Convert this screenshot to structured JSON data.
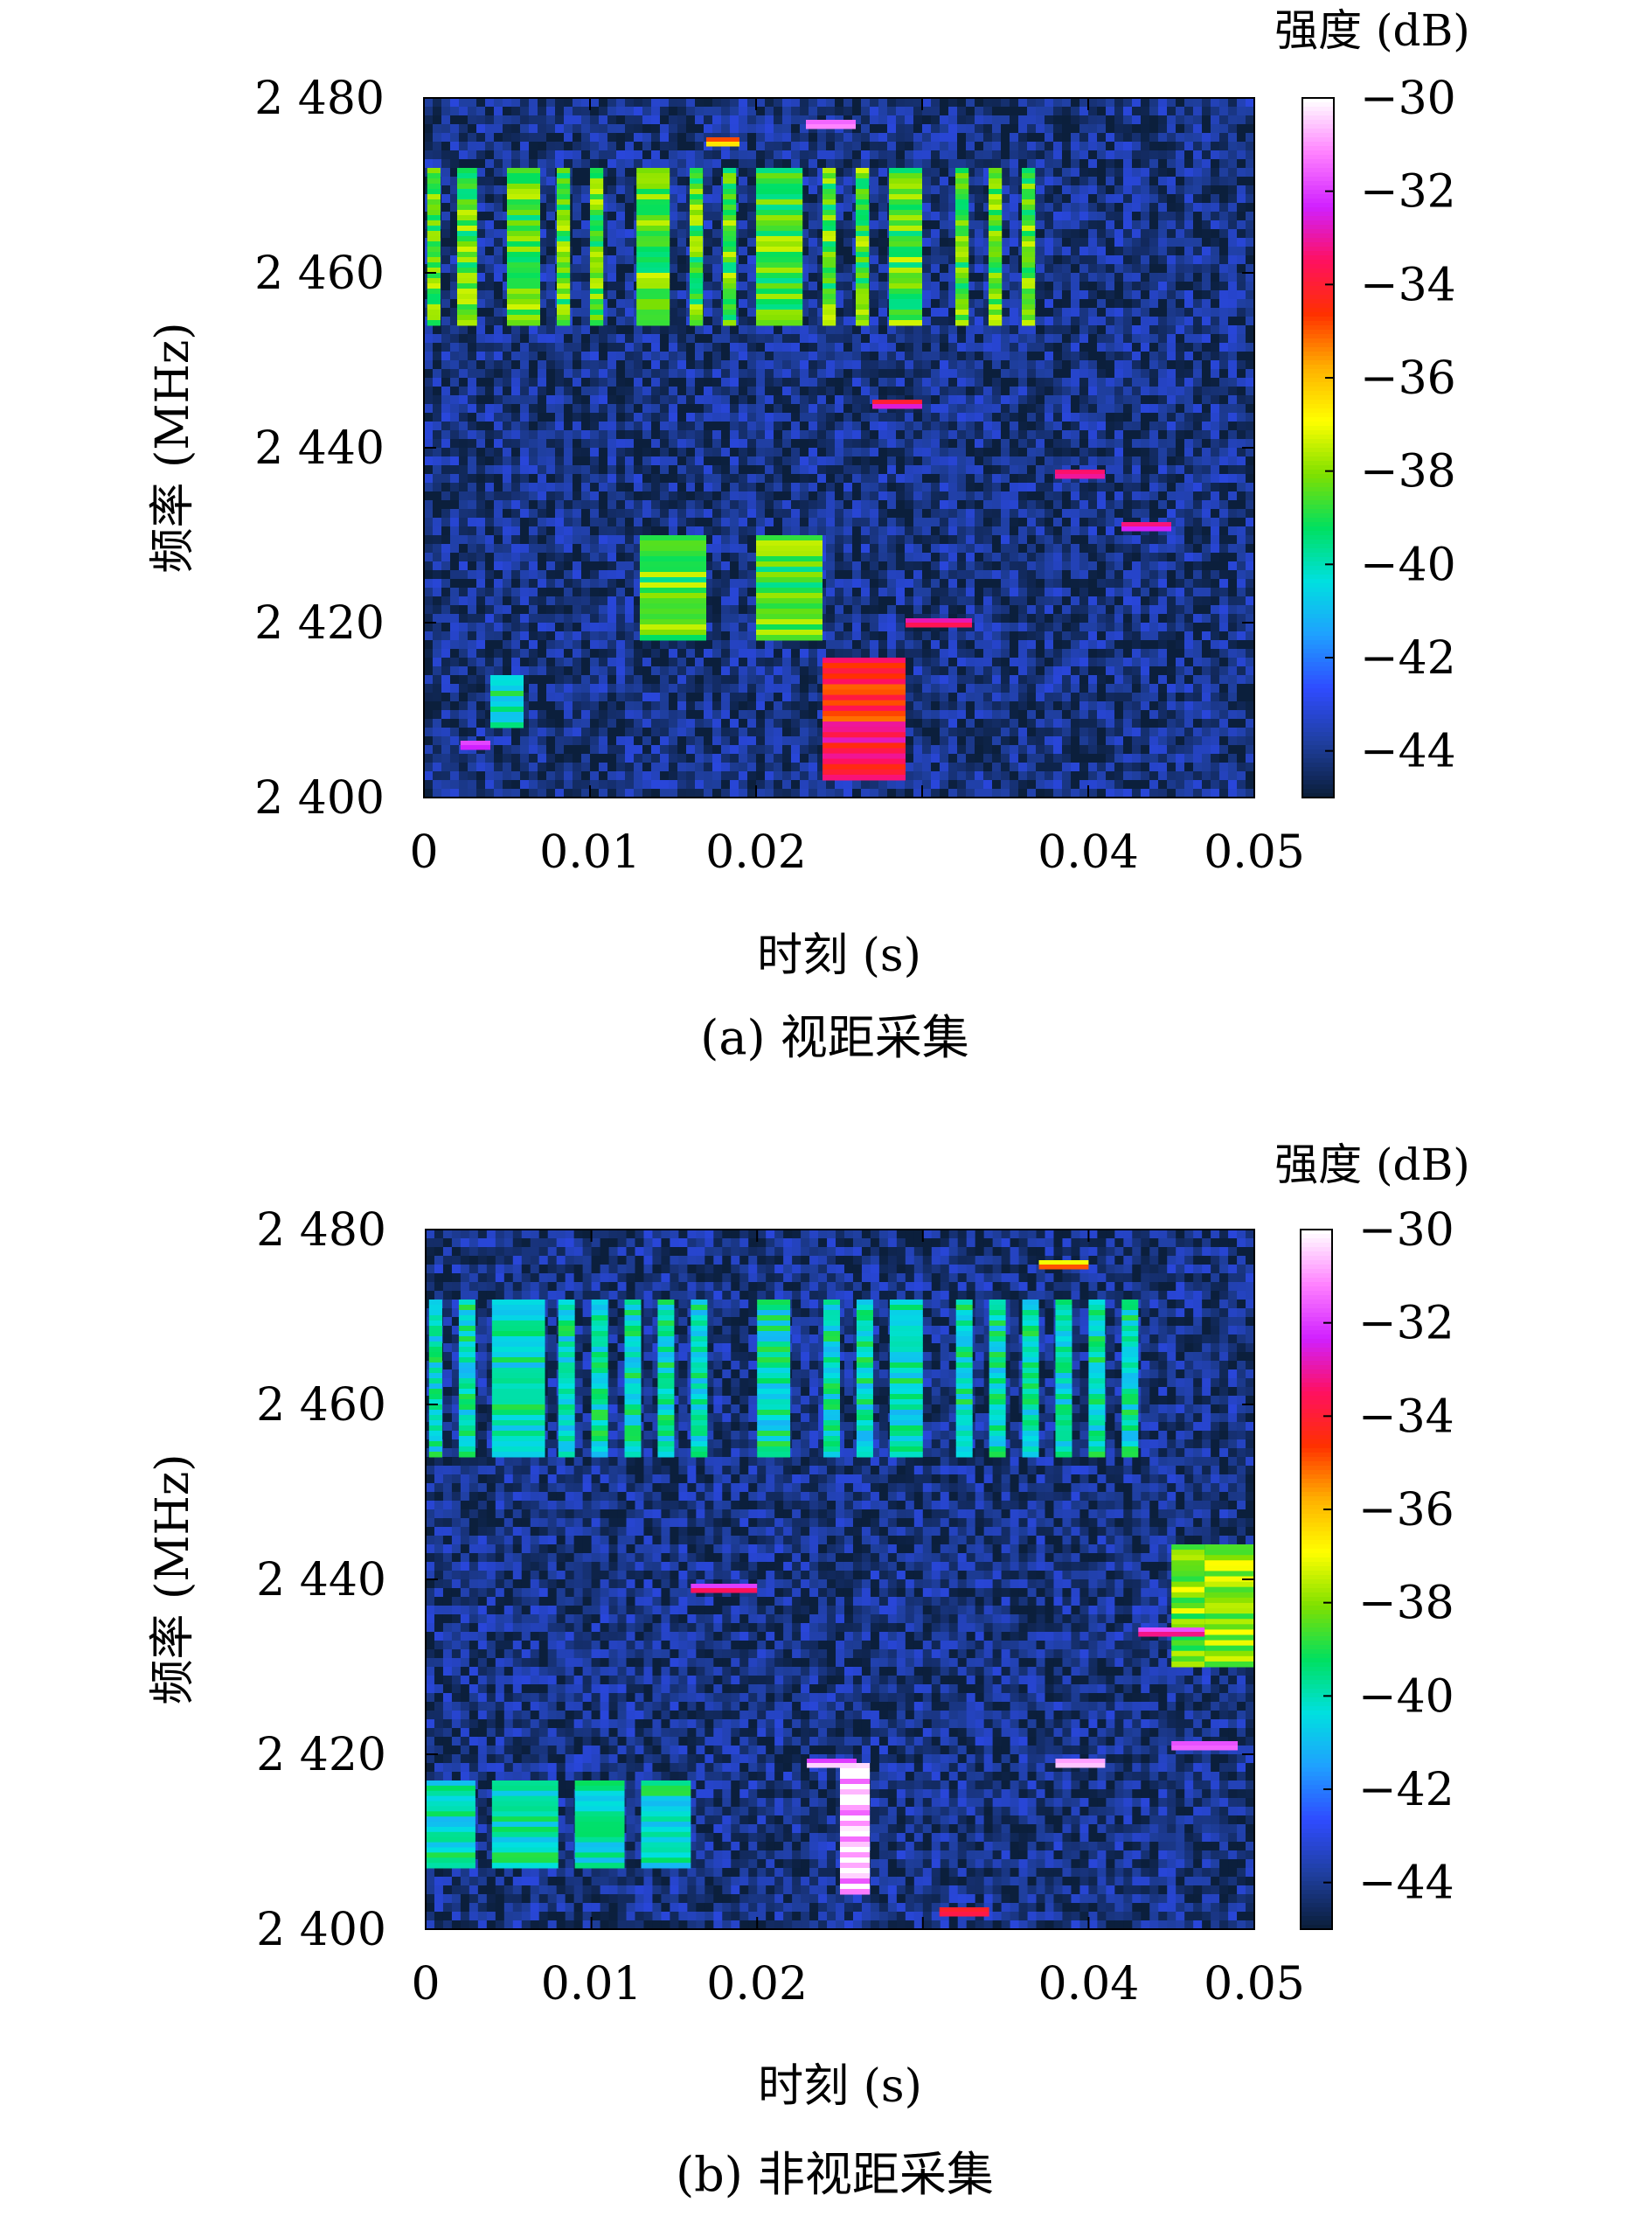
{
  "chart_data": [
    {
      "type": "heatmap",
      "caption": "(a) 视距采集",
      "xlabel": "时刻 (s)",
      "ylabel": "频率 (MHz)",
      "colorbar_label": "强度 (dB)",
      "xlim": [
        0,
        0.05
      ],
      "ylim": [
        2400,
        2480
      ],
      "x_ticks": [
        0,
        0.01,
        0.02,
        0.03,
        0.04,
        0.05
      ],
      "x_tick_labels": [
        "0",
        "0.01",
        "0.02",
        "",
        "0.04",
        "0.05"
      ],
      "y_ticks": [
        2400,
        2420,
        2440,
        2460,
        2480
      ],
      "y_tick_labels": [
        "2 400",
        "2 420",
        "2 440",
        "2 460",
        "2 480"
      ],
      "colorbar_range": [
        -45,
        -30
      ],
      "colorbar_ticks": [
        -30,
        -32,
        -34,
        -36,
        -38,
        -40,
        -42,
        -44
      ],
      "colorbar_tick_labels": [
        "−30",
        "−32",
        "−34",
        "−36",
        "−38",
        "−40",
        "−42",
        "−44"
      ],
      "colormap": [
        "#0b1f3c",
        "#1f3fa0",
        "#2f4bff",
        "#1fa0ff",
        "#00e0e0",
        "#00e060",
        "#7fe000",
        "#ffff00",
        "#ffb000",
        "#ff3000",
        "#ff1060",
        "#d020ff",
        "#ff80ff",
        "#ffffff"
      ],
      "background_db": -44,
      "regions": [
        {
          "x": [
            0.0002,
            0.001
          ],
          "y": [
            2454,
            2472
          ],
          "db": -38.5
        },
        {
          "x": [
            0.002,
            0.0032
          ],
          "y": [
            2454,
            2472
          ],
          "db": -38.5
        },
        {
          "x": [
            0.005,
            0.007
          ],
          "y": [
            2454,
            2472
          ],
          "db": -38.5
        },
        {
          "x": [
            0.008,
            0.0088
          ],
          "y": [
            2454,
            2472
          ],
          "db": -38.5
        },
        {
          "x": [
            0.01,
            0.0108
          ],
          "y": [
            2454,
            2472
          ],
          "db": -38.5
        },
        {
          "x": [
            0.0128,
            0.0148
          ],
          "y": [
            2454,
            2472
          ],
          "db": -38.5
        },
        {
          "x": [
            0.016,
            0.0168
          ],
          "y": [
            2454,
            2472
          ],
          "db": -38.5
        },
        {
          "x": [
            0.018,
            0.0188
          ],
          "y": [
            2454,
            2472
          ],
          "db": -38.5
        },
        {
          "x": [
            0.02,
            0.0228
          ],
          "y": [
            2454,
            2472
          ],
          "db": -38.5
        },
        {
          "x": [
            0.024,
            0.0248
          ],
          "y": [
            2454,
            2472
          ],
          "db": -38.5
        },
        {
          "x": [
            0.026,
            0.0268
          ],
          "y": [
            2454,
            2472
          ],
          "db": -38.5
        },
        {
          "x": [
            0.028,
            0.03
          ],
          "y": [
            2454,
            2472
          ],
          "db": -38.5
        },
        {
          "x": [
            0.032,
            0.0328
          ],
          "y": [
            2454,
            2472
          ],
          "db": -38.5
        },
        {
          "x": [
            0.034,
            0.0348
          ],
          "y": [
            2454,
            2472
          ],
          "db": -38.5
        },
        {
          "x": [
            0.036,
            0.0368
          ],
          "y": [
            2454,
            2472
          ],
          "db": -38.5
        },
        {
          "x": [
            0.013,
            0.017
          ],
          "y": [
            2418,
            2430
          ],
          "db": -38.5
        },
        {
          "x": [
            0.02,
            0.024
          ],
          "y": [
            2418,
            2430
          ],
          "db": -38.5
        },
        {
          "x": [
            0.024,
            0.029
          ],
          "y": [
            2402,
            2416
          ],
          "db": -34.0
        },
        {
          "x": [
            0.004,
            0.006
          ],
          "y": [
            2408,
            2414
          ],
          "db": -40.0
        },
        {
          "x": [
            0.023,
            0.026
          ],
          "y": [
            2476.5,
            2477.5
          ],
          "db": -31.0
        },
        {
          "x": [
            0.017,
            0.019
          ],
          "y": [
            2474.5,
            2475.5
          ],
          "db": -36.0
        },
        {
          "x": [
            0.0022,
            0.004
          ],
          "y": [
            2405.5,
            2406.5
          ],
          "db": -32.0
        },
        {
          "x": [
            0.038,
            0.041
          ],
          "y": [
            2436.5,
            2437.5
          ],
          "db": -33.0
        },
        {
          "x": [
            0.027,
            0.03
          ],
          "y": [
            2444.5,
            2445.5
          ],
          "db": -33.0
        },
        {
          "x": [
            0.029,
            0.033
          ],
          "y": [
            2419.5,
            2420.5
          ],
          "db": -34.0
        },
        {
          "x": [
            0.042,
            0.045
          ],
          "y": [
            2430.5,
            2431.5
          ],
          "db": -32.5
        }
      ]
    },
    {
      "type": "heatmap",
      "caption": "(b) 非视距采集",
      "xlabel": "时刻 (s)",
      "ylabel": "频率 (MHz)",
      "colorbar_label": "强度 (dB)",
      "xlim": [
        0,
        0.05
      ],
      "ylim": [
        2400,
        2480
      ],
      "x_ticks": [
        0,
        0.01,
        0.02,
        0.03,
        0.04,
        0.05
      ],
      "x_tick_labels": [
        "0",
        "0.01",
        "0.02",
        "",
        "0.04",
        "0.05"
      ],
      "y_ticks": [
        2400,
        2420,
        2440,
        2460,
        2480
      ],
      "y_tick_labels": [
        "2 400",
        "2 420",
        "2 440",
        "2 460",
        "2 480"
      ],
      "colorbar_range": [
        -45,
        -30
      ],
      "colorbar_ticks": [
        -30,
        -32,
        -34,
        -36,
        -38,
        -40,
        -42,
        -44
      ],
      "colorbar_tick_labels": [
        "−30",
        "−32",
        "−34",
        "−36",
        "−38",
        "−40",
        "−42",
        "−44"
      ],
      "colormap": [
        "#0b1f3c",
        "#1f3fa0",
        "#2f4bff",
        "#1fa0ff",
        "#00e0e0",
        "#00e060",
        "#7fe000",
        "#ffff00",
        "#ffb000",
        "#ff3000",
        "#ff1060",
        "#d020ff",
        "#ff80ff",
        "#ffffff"
      ],
      "background_db": -44,
      "regions": [
        {
          "x": [
            0.0002,
            0.001
          ],
          "y": [
            2454,
            2472
          ],
          "db": -40.0
        },
        {
          "x": [
            0.002,
            0.003
          ],
          "y": [
            2454,
            2472
          ],
          "db": -40.0
        },
        {
          "x": [
            0.004,
            0.0072
          ],
          "y": [
            2454,
            2472
          ],
          "db": -40.0
        },
        {
          "x": [
            0.008,
            0.009
          ],
          "y": [
            2454,
            2472
          ],
          "db": -40.0
        },
        {
          "x": [
            0.01,
            0.011
          ],
          "y": [
            2454,
            2472
          ],
          "db": -40.0
        },
        {
          "x": [
            0.012,
            0.013
          ],
          "y": [
            2454,
            2472
          ],
          "db": -40.0
        },
        {
          "x": [
            0.014,
            0.015
          ],
          "y": [
            2454,
            2472
          ],
          "db": -40.0
        },
        {
          "x": [
            0.016,
            0.017
          ],
          "y": [
            2454,
            2472
          ],
          "db": -40.0
        },
        {
          "x": [
            0.02,
            0.022
          ],
          "y": [
            2454,
            2472
          ],
          "db": -40.0
        },
        {
          "x": [
            0.024,
            0.025
          ],
          "y": [
            2454,
            2472
          ],
          "db": -40.0
        },
        {
          "x": [
            0.026,
            0.027
          ],
          "y": [
            2454,
            2472
          ],
          "db": -40.0
        },
        {
          "x": [
            0.028,
            0.03
          ],
          "y": [
            2454,
            2472
          ],
          "db": -40.0
        },
        {
          "x": [
            0.032,
            0.033
          ],
          "y": [
            2454,
            2472
          ],
          "db": -40.0
        },
        {
          "x": [
            0.034,
            0.035
          ],
          "y": [
            2454,
            2472
          ],
          "db": -40.0
        },
        {
          "x": [
            0.036,
            0.037
          ],
          "y": [
            2454,
            2472
          ],
          "db": -40.0
        },
        {
          "x": [
            0.038,
            0.039
          ],
          "y": [
            2454,
            2472
          ],
          "db": -40.0
        },
        {
          "x": [
            0.04,
            0.041
          ],
          "y": [
            2454,
            2472
          ],
          "db": -40.0
        },
        {
          "x": [
            0.042,
            0.043
          ],
          "y": [
            2454,
            2472
          ],
          "db": -40.0
        },
        {
          "x": [
            0.045,
            0.047
          ],
          "y": [
            2430,
            2444
          ],
          "db": -38.0
        },
        {
          "x": [
            0.047,
            0.05
          ],
          "y": [
            2430,
            2444
          ],
          "db": -38.0
        },
        {
          "x": [
            0.0,
            0.003
          ],
          "y": [
            2407,
            2417
          ],
          "db": -40.0
        },
        {
          "x": [
            0.004,
            0.008
          ],
          "y": [
            2407,
            2417
          ],
          "db": -40.0
        },
        {
          "x": [
            0.009,
            0.012
          ],
          "y": [
            2407,
            2417
          ],
          "db": -40.0
        },
        {
          "x": [
            0.013,
            0.016
          ],
          "y": [
            2407,
            2417
          ],
          "db": -40.0
        },
        {
          "x": [
            0.025,
            0.0268
          ],
          "y": [
            2404,
            2419
          ],
          "db": -30.5
        },
        {
          "x": [
            0.016,
            0.02
          ],
          "y": [
            2438.5,
            2439.5
          ],
          "db": -33.0
        },
        {
          "x": [
            0.023,
            0.026
          ],
          "y": [
            2418.5,
            2419.5
          ],
          "db": -31.0
        },
        {
          "x": [
            0.038,
            0.041
          ],
          "y": [
            2418.5,
            2419.5
          ],
          "db": -31.5
        },
        {
          "x": [
            0.043,
            0.047
          ],
          "y": [
            2433.5,
            2434.5
          ],
          "db": -32.0
        },
        {
          "x": [
            0.045,
            0.049
          ],
          "y": [
            2420.5,
            2421.5
          ],
          "db": -32.5
        },
        {
          "x": [
            0.037,
            0.04
          ],
          "y": [
            2475.5,
            2476.5
          ],
          "db": -36.0
        },
        {
          "x": [
            0.031,
            0.034
          ],
          "y": [
            2401.5,
            2402.5
          ],
          "db": -33.0
        }
      ]
    }
  ]
}
